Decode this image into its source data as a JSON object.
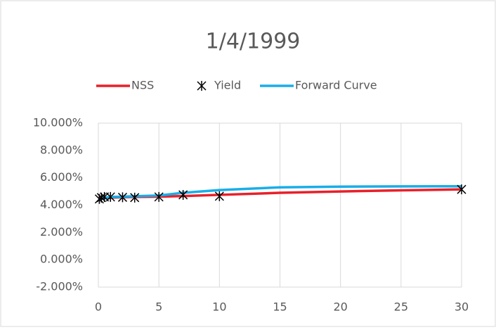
{
  "chart_data": {
    "type": "line",
    "title": "1/4/1999",
    "xlim": [
      0,
      30
    ],
    "xticks": [
      0,
      5,
      10,
      15,
      20,
      25,
      30
    ],
    "ylim": [
      -2,
      10
    ],
    "yticks": [
      {
        "value": -2,
        "label": "-2.000%"
      },
      {
        "value": 0,
        "label": "0.000%"
      },
      {
        "value": 2,
        "label": "2.000%"
      },
      {
        "value": 4,
        "label": "4.000%"
      },
      {
        "value": 6,
        "label": "6.000%"
      },
      {
        "value": 8,
        "label": "8.000%"
      },
      {
        "value": 10,
        "label": "10.000%"
      }
    ],
    "grid": "x",
    "legend": "top",
    "series": [
      {
        "name": "NSS",
        "color": "#e8202a",
        "marker": "line",
        "x": [
          0,
          1,
          2,
          3,
          5,
          7,
          10,
          15,
          20,
          25,
          30
        ],
        "values": [
          4.48,
          4.55,
          4.58,
          4.6,
          4.62,
          4.66,
          4.75,
          4.9,
          5.0,
          5.08,
          5.15
        ]
      },
      {
        "name": "Yield",
        "color": "#000000",
        "marker": "star",
        "x": [
          0.083,
          0.25,
          0.5,
          1,
          2,
          3,
          5,
          7,
          10,
          30
        ],
        "values": [
          4.45,
          4.55,
          4.6,
          4.6,
          4.57,
          4.55,
          4.6,
          4.75,
          4.65,
          5.15
        ]
      },
      {
        "name": "Forward Curve",
        "color": "#19aee8",
        "marker": "line",
        "x": [
          0,
          1,
          2,
          3,
          5,
          7,
          10,
          15,
          20,
          25,
          30
        ],
        "values": [
          4.45,
          4.6,
          4.62,
          4.65,
          4.7,
          4.9,
          5.1,
          5.3,
          5.35,
          5.37,
          5.38
        ]
      }
    ]
  }
}
